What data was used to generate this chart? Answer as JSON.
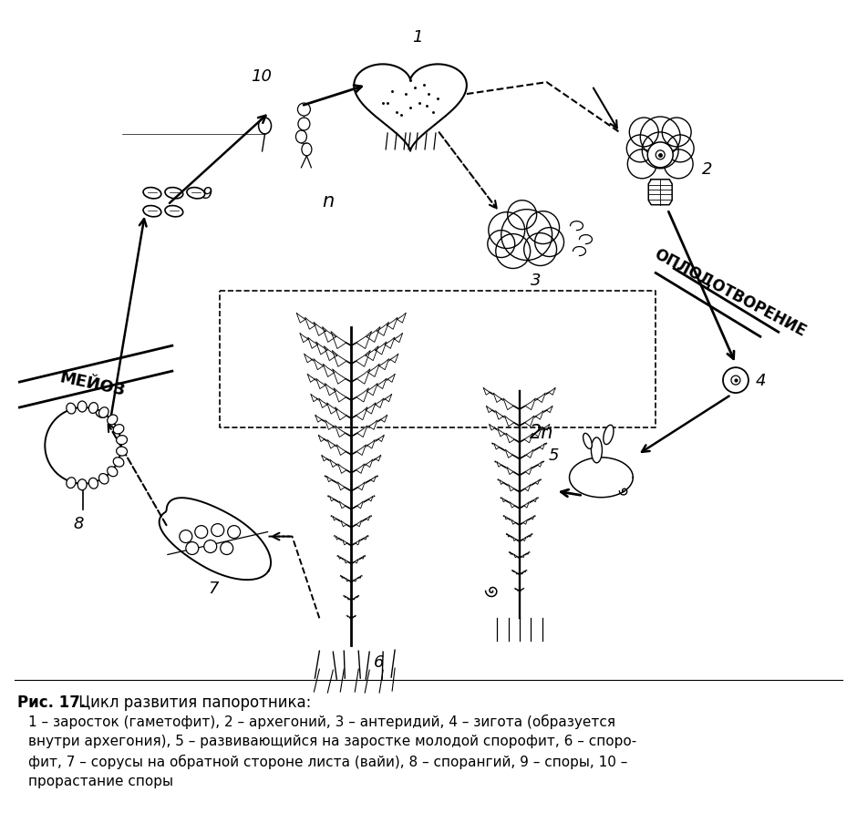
{
  "title_bold": "Рис. 17.",
  "title_normal": " Цикл развития папоротника:",
  "caption_line1": "1 – заросток (гаметофит), 2 – архегоний, 3 – антеридий, 4 – зигота (образуется",
  "caption_line2": "внутри архегония), 5 – развивающийся на заростке молодой спорофит, 6 – споро-",
  "caption_line3": "фит, 7 – сорусы на обратной стороне листа (вайи), 8 – спорангий, 9 – споры, 10 –",
  "caption_line4": "прорастание споры",
  "label_n": "n",
  "label_2n": "2n",
  "label_meioz": "МЕЙОЗ",
  "label_oplod": "ОПЛОДОТВОРЕНИЕ",
  "bg_color": "#ffffff",
  "figsize": [
    9.4,
    9.04
  ],
  "dpi": 100
}
